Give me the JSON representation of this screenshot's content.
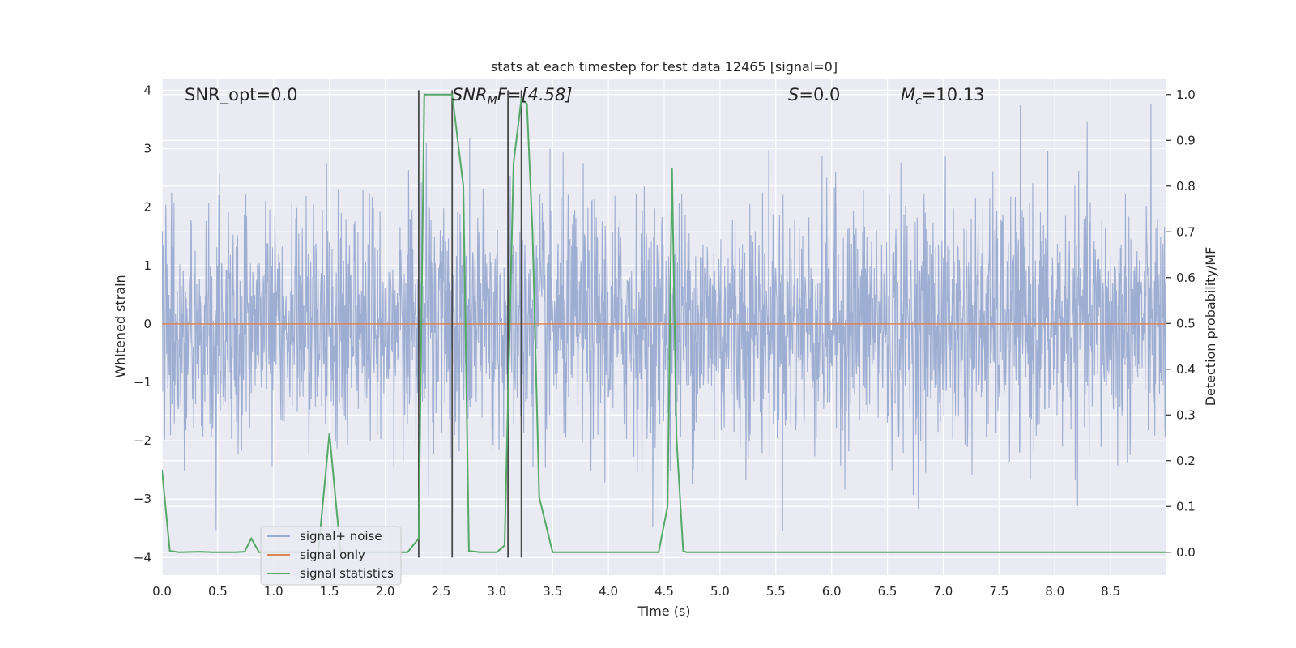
{
  "chart_data": {
    "type": "line",
    "title": "stats at each timestep for test data 12465 [signal=0]",
    "xlabel": "Time (s)",
    "ylabel": "Whitened strain",
    "y2label": "Detection probability/MF",
    "xlim": [
      0.0,
      9.0
    ],
    "ylim": [
      -4.3,
      4.2
    ],
    "y2lim": [
      -0.05,
      1.035
    ],
    "grid": true,
    "legend_placement": "lower-left",
    "x_ticks": [
      "0.0",
      "0.5",
      "1.0",
      "1.5",
      "2.0",
      "2.5",
      "3.0",
      "3.5",
      "4.0",
      "4.5",
      "5.0",
      "5.5",
      "6.0",
      "6.5",
      "7.0",
      "7.5",
      "8.0",
      "8.5"
    ],
    "x_tick_values": [
      0.0,
      0.5,
      1.0,
      1.5,
      2.0,
      2.5,
      3.0,
      3.5,
      4.0,
      4.5,
      5.0,
      5.5,
      6.0,
      6.5,
      7.0,
      7.5,
      8.0,
      8.5
    ],
    "y_ticks": [
      "4",
      "3",
      "2",
      "1",
      "0",
      "−1",
      "−2",
      "−3",
      "−4"
    ],
    "y_tick_values": [
      4,
      3,
      2,
      1,
      0,
      -1,
      -2,
      -3,
      -4
    ],
    "y2_ticks": [
      "1.0",
      "0.9",
      "0.8",
      "0.7",
      "0.6",
      "0.5",
      "0.4",
      "0.3",
      "0.2",
      "0.1",
      "0.0"
    ],
    "y2_tick_values": [
      1.0,
      0.9,
      0.8,
      0.7,
      0.6,
      0.5,
      0.4,
      0.3,
      0.2,
      0.1,
      0.0
    ],
    "annotations": {
      "snr_opt": "SNR_opt=0.0",
      "snr_mf_base": "SNR",
      "snr_mf_sub": "M",
      "snr_mf_rest": "F=[4.58]",
      "s_base": "S",
      "s_rest": "=0.0",
      "mc_base": "M",
      "mc_sub": "c",
      "mc_rest": "=10.13"
    },
    "series": [
      {
        "name": "signal+ noise",
        "axis": "left",
        "kind": "noise",
        "description_values": "dense whitened noise, roughly within ±2.5, extremes about ±3.8",
        "envelope_max": 3.8,
        "envelope_min": -4.0
      },
      {
        "name": "signal only",
        "axis": "left",
        "kind": "line",
        "x": [
          0.0,
          9.0
        ],
        "y": [
          0.0,
          0.0
        ]
      },
      {
        "name": "signal statistics",
        "axis": "right",
        "kind": "line",
        "x": [
          0.0,
          0.07,
          0.15,
          0.35,
          0.45,
          0.55,
          0.65,
          0.74,
          0.8,
          0.87,
          1.0,
          1.1,
          1.2,
          1.3,
          1.4,
          1.5,
          1.6,
          1.7,
          1.8,
          1.9,
          2.0,
          2.1,
          2.2,
          2.3,
          2.35,
          2.4,
          2.5,
          2.6,
          2.7,
          2.75,
          2.85,
          2.9,
          3.0,
          3.07,
          3.15,
          3.22,
          3.27,
          3.32,
          3.38,
          3.5,
          4.0,
          4.45,
          4.53,
          4.57,
          4.61,
          4.67,
          4.7,
          5.0,
          9.0
        ],
        "y": [
          0.18,
          0.003,
          0.0,
          0.001,
          0.0,
          0.0,
          0.0,
          0.001,
          0.03,
          0.0,
          0.0,
          0.0,
          0.0,
          0.0,
          0.0,
          0.26,
          0.0,
          0.0,
          0.0,
          0.0,
          0.0,
          0.0,
          0.0,
          0.03,
          1.0,
          1.0,
          1.0,
          1.0,
          0.8,
          0.003,
          0.0,
          0.0,
          0.0,
          0.015,
          0.85,
          0.99,
          0.98,
          0.7,
          0.12,
          0.0,
          0.0,
          0.0,
          0.1,
          0.84,
          0.25,
          0.003,
          0.0,
          0.0,
          0.0
        ]
      }
    ],
    "vertical_lines": {
      "axis": "left",
      "x": [
        2.3,
        2.6,
        3.1,
        3.22
      ],
      "y_top": 4.0,
      "y_bottom": -4.0
    },
    "colors": {
      "background": "#eaeaf2",
      "grid": "#ffffff",
      "noise": "#9aabd0",
      "signal_only": "#dd8452",
      "signal_statistics": "#55a868",
      "vertical_lines": "#4a4a4a"
    }
  }
}
